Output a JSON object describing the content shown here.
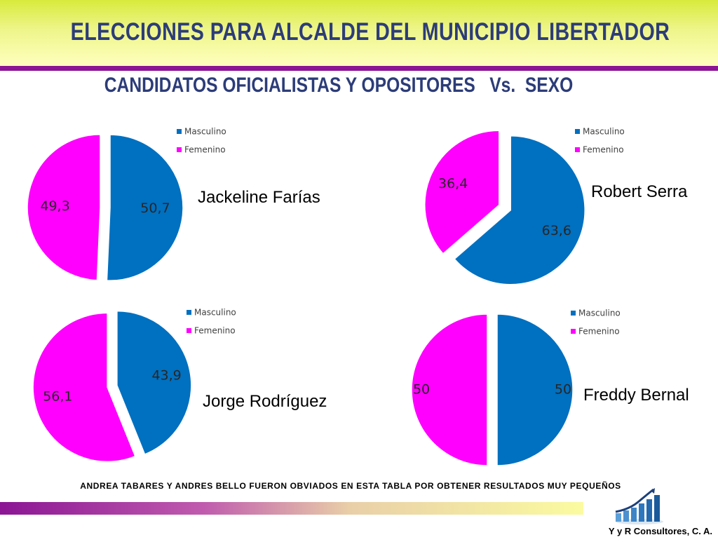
{
  "header": {
    "title": "ELECCIONES PARA ALCALDE DEL MUNICIPIO LIBERTADOR",
    "subtitle": "CANDIDATOS OFICIALISTAS Y OPOSITORES   Vs.  SEXO"
  },
  "colors": {
    "masculino": "#0070c0",
    "femenino": "#ff00ff",
    "accent": "#8b1594",
    "title": "#2c3c78"
  },
  "chart_data": [
    {
      "type": "pie",
      "candidate": "Jackeline Farías",
      "categories": [
        "Masculino",
        "Femenino"
      ],
      "values": [
        50.7,
        49.3
      ],
      "value_labels": [
        "50,7",
        "49,3"
      ],
      "legend_position": "top-right"
    },
    {
      "type": "pie",
      "candidate": "Robert Serra",
      "categories": [
        "Masculino",
        "Femenino"
      ],
      "values": [
        63.6,
        36.4
      ],
      "value_labels": [
        "63,6",
        "36,4"
      ],
      "legend_position": "top-right"
    },
    {
      "type": "pie",
      "candidate": "Jorge Rodríguez",
      "categories": [
        "Masculino",
        "Femenino"
      ],
      "values": [
        43.9,
        56.1
      ],
      "value_labels": [
        "43,9",
        "56,1"
      ],
      "legend_position": "top-right"
    },
    {
      "type": "pie",
      "candidate": "Freddy Bernal",
      "categories": [
        "Masculino",
        "Femenino"
      ],
      "values": [
        50,
        50
      ],
      "value_labels": [
        "50",
        "50"
      ],
      "legend_position": "top-right"
    }
  ],
  "footnote": "ANDREA TABARES Y ANDRES BELLO FUERON OBVIADOS EN ESTA TABLA POR OBTENER RESULTADOS MUY PEQUEÑOS",
  "company": "Y y R Consultores, C. A."
}
